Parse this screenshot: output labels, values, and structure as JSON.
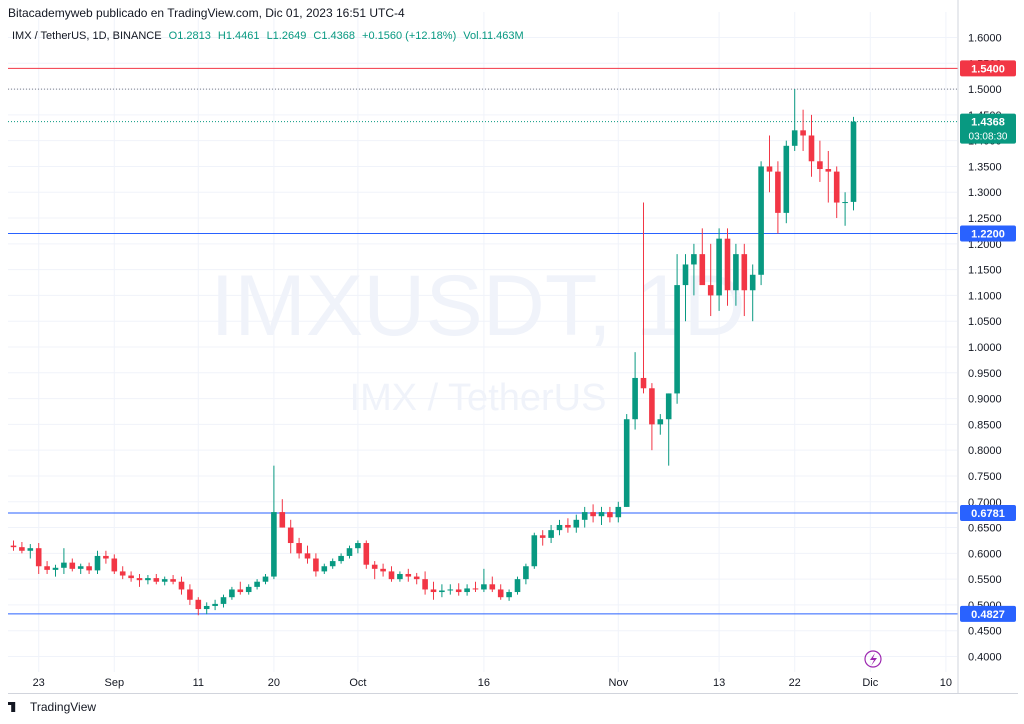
{
  "header": {
    "publisher": "Bitacademyweb publicado en TradingView.com, Dic 01, 2023 16:51 UTC-4"
  },
  "legend": {
    "symbol": "IMX / TetherUS, 1D, BINANCE",
    "open": "O1.2813",
    "high": "H1.4461",
    "low": "L1.2649",
    "close": "C1.4368",
    "change": "+0.1560 (+12.18%)",
    "volume": "Vol.11.463M"
  },
  "footer": {
    "brand": "TradingView"
  },
  "watermark": {
    "symbol": "IMXUSDT, 1D",
    "name": "IMX / TetherUS"
  },
  "colors": {
    "up": "#089981",
    "down": "#f23645",
    "resistance": "#f23645",
    "support": "#2962ff"
  },
  "chart_data": {
    "type": "candlestick",
    "ylim": [
      0.37,
      1.63
    ],
    "y_ticks": [
      "1.6000",
      "1.5500",
      "1.5000",
      "1.4500",
      "1.4000",
      "1.3500",
      "1.3000",
      "1.2500",
      "1.2000",
      "1.1500",
      "1.1000",
      "1.0500",
      "1.0000",
      "0.9500",
      "0.9000",
      "0.8500",
      "0.8000",
      "0.7500",
      "0.7000",
      "0.6500",
      "0.6000",
      "0.5500",
      "0.5000",
      "0.4500",
      "0.4000"
    ],
    "x_ticks": [
      {
        "label": "23",
        "index": 3
      },
      {
        "label": "Sep",
        "index": 12
      },
      {
        "label": "11",
        "index": 22
      },
      {
        "label": "20",
        "index": 31
      },
      {
        "label": "Oct",
        "index": 41
      },
      {
        "label": "16",
        "index": 56
      },
      {
        "label": "Nov",
        "index": 72
      },
      {
        "label": "13",
        "index": 84
      },
      {
        "label": "22",
        "index": 93
      },
      {
        "label": "Dic",
        "index": 102
      },
      {
        "label": "10",
        "index": 111
      }
    ],
    "horizontal_lines": [
      {
        "value": 1.54,
        "label": "1.5400",
        "color": "#f23645",
        "style": "solid"
      },
      {
        "value": 1.5,
        "label": "",
        "color": "#787b86",
        "style": "dotted"
      },
      {
        "value": 1.22,
        "label": "1.2200",
        "color": "#2962ff",
        "style": "solid"
      },
      {
        "value": 0.6781,
        "label": "0.6781",
        "color": "#2962ff",
        "style": "solid"
      },
      {
        "value": 0.4827,
        "label": "0.4827",
        "color": "#2962ff",
        "style": "solid"
      }
    ],
    "last_price": {
      "value": 1.4368,
      "label": "1.4368",
      "countdown": "03:08:30"
    },
    "candles": [
      [
        0.615,
        0.625,
        0.605,
        0.612
      ],
      [
        0.612,
        0.622,
        0.6,
        0.605
      ],
      [
        0.605,
        0.618,
        0.59,
        0.61
      ],
      [
        0.61,
        0.62,
        0.56,
        0.575
      ],
      [
        0.575,
        0.585,
        0.56,
        0.568
      ],
      [
        0.568,
        0.578,
        0.555,
        0.572
      ],
      [
        0.572,
        0.61,
        0.56,
        0.582
      ],
      [
        0.582,
        0.59,
        0.565,
        0.57
      ],
      [
        0.57,
        0.58,
        0.56,
        0.575
      ],
      [
        0.575,
        0.582,
        0.56,
        0.567
      ],
      [
        0.567,
        0.605,
        0.56,
        0.595
      ],
      [
        0.595,
        0.605,
        0.58,
        0.59
      ],
      [
        0.59,
        0.598,
        0.56,
        0.565
      ],
      [
        0.565,
        0.575,
        0.55,
        0.557
      ],
      [
        0.557,
        0.565,
        0.545,
        0.552
      ],
      [
        0.552,
        0.56,
        0.535,
        0.548
      ],
      [
        0.548,
        0.558,
        0.54,
        0.552
      ],
      [
        0.552,
        0.56,
        0.54,
        0.545
      ],
      [
        0.545,
        0.555,
        0.538,
        0.55
      ],
      [
        0.55,
        0.558,
        0.54,
        0.545
      ],
      [
        0.545,
        0.555,
        0.52,
        0.53
      ],
      [
        0.53,
        0.54,
        0.5,
        0.51
      ],
      [
        0.51,
        0.515,
        0.48,
        0.492
      ],
      [
        0.492,
        0.505,
        0.482,
        0.498
      ],
      [
        0.498,
        0.51,
        0.49,
        0.502
      ],
      [
        0.502,
        0.52,
        0.495,
        0.515
      ],
      [
        0.515,
        0.535,
        0.51,
        0.53
      ],
      [
        0.53,
        0.545,
        0.52,
        0.525
      ],
      [
        0.525,
        0.54,
        0.52,
        0.535
      ],
      [
        0.535,
        0.55,
        0.53,
        0.545
      ],
      [
        0.545,
        0.56,
        0.54,
        0.555
      ],
      [
        0.555,
        0.77,
        0.55,
        0.68
      ],
      [
        0.68,
        0.705,
        0.65,
        0.65
      ],
      [
        0.65,
        0.665,
        0.6,
        0.62
      ],
      [
        0.62,
        0.63,
        0.59,
        0.6
      ],
      [
        0.6,
        0.615,
        0.58,
        0.59
      ],
      [
        0.59,
        0.6,
        0.555,
        0.565
      ],
      [
        0.565,
        0.58,
        0.56,
        0.575
      ],
      [
        0.575,
        0.59,
        0.57,
        0.585
      ],
      [
        0.585,
        0.6,
        0.58,
        0.595
      ],
      [
        0.595,
        0.615,
        0.59,
        0.61
      ],
      [
        0.61,
        0.625,
        0.6,
        0.62
      ],
      [
        0.62,
        0.625,
        0.57,
        0.578
      ],
      [
        0.578,
        0.585,
        0.55,
        0.57
      ],
      [
        0.57,
        0.58,
        0.555,
        0.565
      ],
      [
        0.565,
        0.575,
        0.545,
        0.55
      ],
      [
        0.55,
        0.565,
        0.545,
        0.56
      ],
      [
        0.56,
        0.57,
        0.545,
        0.555
      ],
      [
        0.555,
        0.562,
        0.54,
        0.55
      ],
      [
        0.55,
        0.565,
        0.52,
        0.53
      ],
      [
        0.53,
        0.545,
        0.51,
        0.525
      ],
      [
        0.525,
        0.54,
        0.515,
        0.528
      ],
      [
        0.528,
        0.54,
        0.52,
        0.53
      ],
      [
        0.53,
        0.542,
        0.518,
        0.525
      ],
      [
        0.525,
        0.54,
        0.518,
        0.532
      ],
      [
        0.532,
        0.545,
        0.525,
        0.53
      ],
      [
        0.53,
        0.57,
        0.525,
        0.54
      ],
      [
        0.54,
        0.555,
        0.525,
        0.53
      ],
      [
        0.53,
        0.54,
        0.51,
        0.515
      ],
      [
        0.515,
        0.53,
        0.508,
        0.525
      ],
      [
        0.525,
        0.555,
        0.52,
        0.55
      ],
      [
        0.55,
        0.58,
        0.54,
        0.575
      ],
      [
        0.575,
        0.64,
        0.57,
        0.635
      ],
      [
        0.635,
        0.645,
        0.615,
        0.63
      ],
      [
        0.63,
        0.655,
        0.62,
        0.645
      ],
      [
        0.645,
        0.665,
        0.635,
        0.655
      ],
      [
        0.655,
        0.668,
        0.64,
        0.65
      ],
      [
        0.65,
        0.675,
        0.64,
        0.665
      ],
      [
        0.665,
        0.69,
        0.65,
        0.68
      ],
      [
        0.68,
        0.695,
        0.66,
        0.672
      ],
      [
        0.672,
        0.69,
        0.655,
        0.68
      ],
      [
        0.68,
        0.69,
        0.66,
        0.67
      ],
      [
        0.67,
        0.7,
        0.66,
        0.69
      ],
      [
        0.69,
        0.87,
        0.69,
        0.86
      ],
      [
        0.86,
        0.99,
        0.84,
        0.94
      ],
      [
        0.94,
        1.28,
        0.91,
        0.92
      ],
      [
        0.92,
        0.93,
        0.8,
        0.85
      ],
      [
        0.85,
        0.87,
        0.83,
        0.86
      ],
      [
        0.86,
        0.91,
        0.77,
        0.91
      ],
      [
        0.91,
        1.18,
        0.89,
        1.12
      ],
      [
        1.12,
        1.18,
        1.05,
        1.16
      ],
      [
        1.16,
        1.2,
        1.1,
        1.18
      ],
      [
        1.18,
        1.23,
        1.13,
        1.12
      ],
      [
        1.12,
        1.2,
        1.06,
        1.1
      ],
      [
        1.1,
        1.23,
        1.07,
        1.21
      ],
      [
        1.21,
        1.23,
        1.08,
        1.11
      ],
      [
        1.11,
        1.2,
        1.08,
        1.18
      ],
      [
        1.18,
        1.2,
        1.06,
        1.11
      ],
      [
        1.11,
        1.16,
        1.05,
        1.14
      ],
      [
        1.14,
        1.36,
        1.12,
        1.35
      ],
      [
        1.35,
        1.41,
        1.3,
        1.34
      ],
      [
        1.34,
        1.36,
        1.22,
        1.26
      ],
      [
        1.26,
        1.4,
        1.24,
        1.39
      ],
      [
        1.39,
        1.5,
        1.38,
        1.42
      ],
      [
        1.42,
        1.46,
        1.38,
        1.41
      ],
      [
        1.41,
        1.45,
        1.33,
        1.36
      ],
      [
        1.36,
        1.4,
        1.32,
        1.345
      ],
      [
        1.345,
        1.38,
        1.28,
        1.34
      ],
      [
        1.34,
        1.35,
        1.25,
        1.28
      ],
      [
        1.28,
        1.3,
        1.235,
        1.281
      ],
      [
        1.2813,
        1.4461,
        1.2649,
        1.4368
      ]
    ]
  }
}
